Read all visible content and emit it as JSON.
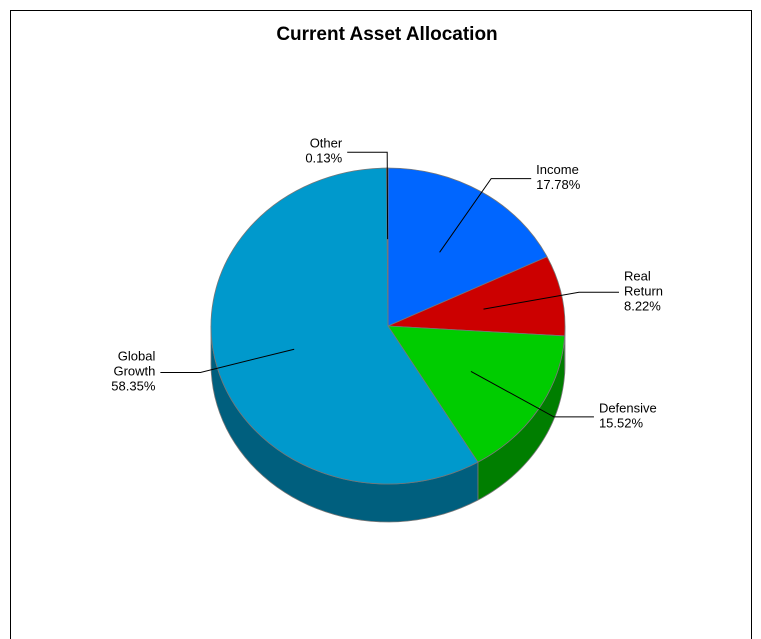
{
  "chart_data": {
    "type": "pie",
    "title": "Current Asset Allocation",
    "categories": [
      "Income",
      "Real Return",
      "Defensive",
      "Global Growth",
      "Other"
    ],
    "values": [
      17.78,
      8.22,
      15.52,
      58.35,
      0.13
    ],
    "value_labels": [
      "17.78%",
      "8.22%",
      "15.52%",
      "58.35%",
      "0.13%"
    ],
    "colors": [
      "#0066ff",
      "#cc0000",
      "#00cc00",
      "#0099cc",
      "#ffcc00"
    ]
  }
}
